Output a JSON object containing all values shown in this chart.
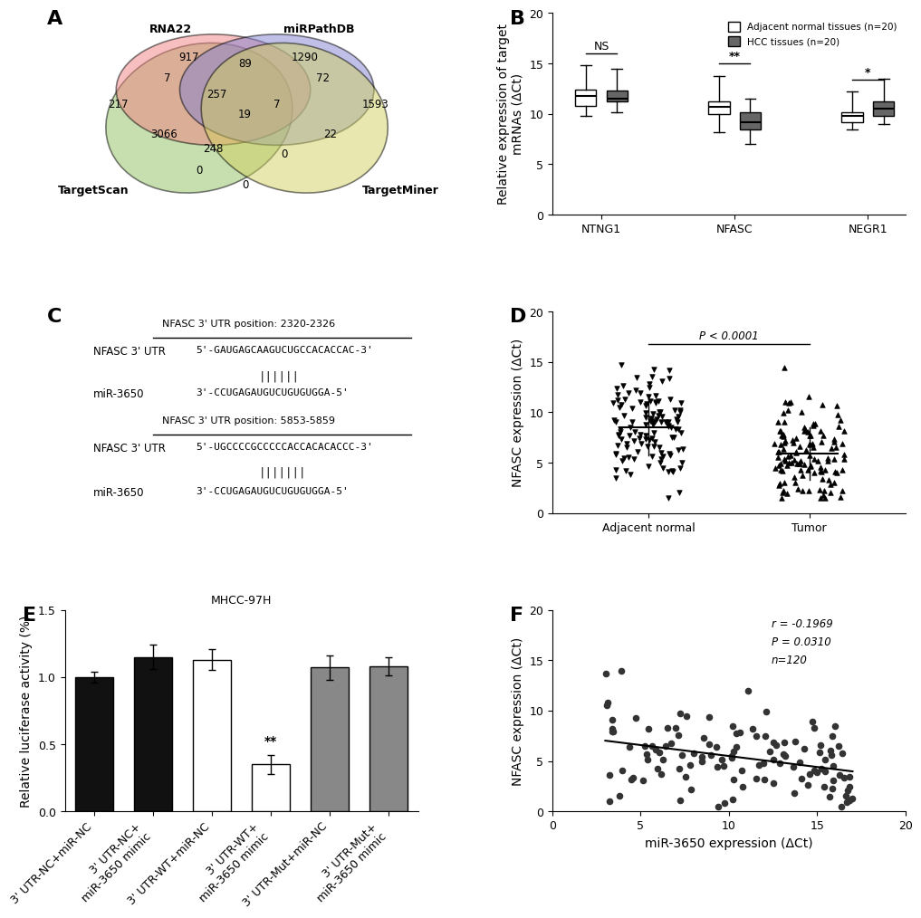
{
  "venn_labels": {
    "RNA22": "RNA22",
    "miRPathDB": "miRPathDB",
    "TargetScan": "TargetScan",
    "TargetMiner": "TargetMiner"
  },
  "venn_numbers": {
    "RNA22_only": "917",
    "miRPathDB_only": "1290",
    "TargetScan_only": "217",
    "TargetMiner_only": "1593",
    "RNA22_miRPathDB": "72",
    "RNA22_TargetScan": "7",
    "RNA22_TargetScan_miRPathDB": "89",
    "TargetScan_miRPathDB": "257",
    "TargetScan_miRPathDB_TargetMiner": "7",
    "miRPathDB_TargetMiner": "22",
    "TargetScan_TargetMiner": "3066",
    "TargetScan_RNA22_TargetMiner": "248",
    "TargetScan_RNA22_miRPathDB_TargetMiner": "19",
    "RNA22_TargetMiner": "0",
    "TargetMiner_mid": "0",
    "bottom_mid": "0"
  },
  "panel_B": {
    "groups": [
      "NTNG1",
      "NFASC",
      "NEGR1"
    ],
    "normal_boxes": [
      {
        "q1": 10.8,
        "med": 11.8,
        "q3": 12.4,
        "whislo": 9.8,
        "whishi": 14.8
      },
      {
        "q1": 10.0,
        "med": 10.7,
        "q3": 11.2,
        "whislo": 8.2,
        "whishi": 13.8
      },
      {
        "q1": 9.2,
        "med": 9.8,
        "q3": 10.2,
        "whislo": 8.5,
        "whishi": 12.2
      }
    ],
    "hcc_boxes": [
      {
        "q1": 11.2,
        "med": 11.5,
        "q3": 12.3,
        "whislo": 10.2,
        "whishi": 14.5
      },
      {
        "q1": 8.5,
        "med": 9.2,
        "q3": 10.2,
        "whislo": 7.0,
        "whishi": 11.5
      },
      {
        "q1": 9.8,
        "med": 10.5,
        "q3": 11.2,
        "whislo": 9.0,
        "whishi": 13.5
      }
    ],
    "significance": [
      "NS",
      "**",
      "*"
    ],
    "ylim": [
      0,
      20
    ],
    "yticks": [
      0,
      5,
      10,
      15,
      20
    ],
    "ylabel": "Relative expression of target\nmRNAs (ΔCt)",
    "legend_normal": "Adjacent normal tissues (n=20)",
    "legend_hcc": "HCC tissues (n=20)",
    "normal_color": "white",
    "hcc_color": "#666666"
  },
  "panel_C": {
    "pos1": "NFASC 3' UTR position: 2320-2326",
    "utr1_label": "NFASC 3' UTR",
    "utr1_seq": "5'-GAUGAGCAAGUCUGCCACACCAC-3'",
    "bars1": "||||||",
    "mir_label": "miR-3650",
    "mir1_seq": "3'-CCUGAGAUGUCUGUGUGGA-5'",
    "pos2": "NFASC 3' UTR position: 5853-5859",
    "utr2_label": "NFASC 3' UTR",
    "utr2_seq": "5'-UGCCCCGCCCCCACCACACACCC-3'",
    "bars2": "|||||||",
    "mir2_seq": "3'-CCUGAGAUGUCUGUGUGGA-5'"
  },
  "panel_D": {
    "ylabel": "NFASC expression (ΔCt)",
    "pvalue": "P < 0.0001",
    "ylim": [
      0,
      20
    ],
    "yticks": [
      0,
      5,
      10,
      15,
      20
    ],
    "groups": [
      "Adjacent normal",
      "Tumor"
    ]
  },
  "panel_E": {
    "title": "MHCC-97H",
    "ylabel": "Relative luciferase activity (%)",
    "ylim": [
      0,
      1.5
    ],
    "yticks": [
      0.0,
      0.5,
      1.0,
      1.5
    ],
    "bars": [
      {
        "label": "3' UTR-NC+miR-NC",
        "mean": 1.0,
        "sd": 0.04,
        "color": "#111111"
      },
      {
        "label": "3' UTR-NC+\nmiR-3650 mimic",
        "mean": 1.15,
        "sd": 0.09,
        "color": "#111111"
      },
      {
        "label": "3' UTR-WT+miR-NC",
        "mean": 1.13,
        "sd": 0.08,
        "color": "white"
      },
      {
        "label": "3' UTR-WT+\nmiR-3650 mimic",
        "mean": 0.35,
        "sd": 0.07,
        "color": "white"
      },
      {
        "label": "3' UTR-Mut+miR-NC",
        "mean": 1.07,
        "sd": 0.09,
        "color": "#888888"
      },
      {
        "label": "3' UTR-Mut+\nmiR-3650 mimic",
        "mean": 1.08,
        "sd": 0.07,
        "color": "#888888"
      }
    ],
    "significance_bar": 3,
    "significance_text": "**"
  },
  "panel_F": {
    "xlabel": "miR-3650 expression (ΔCt)",
    "ylabel": "NFASC expression (ΔCt)",
    "xlim": [
      0,
      20
    ],
    "ylim": [
      0,
      20
    ],
    "xticks": [
      0,
      5,
      10,
      15,
      20
    ],
    "yticks": [
      0,
      5,
      10,
      15,
      20
    ],
    "annotation_r": "r = -0.1969",
    "annotation_p": "P = 0.0310",
    "annotation_n": "n=120",
    "dot_color": "#333333"
  },
  "panel_labels_fontsize": 16,
  "axis_fontsize": 10,
  "tick_fontsize": 9
}
